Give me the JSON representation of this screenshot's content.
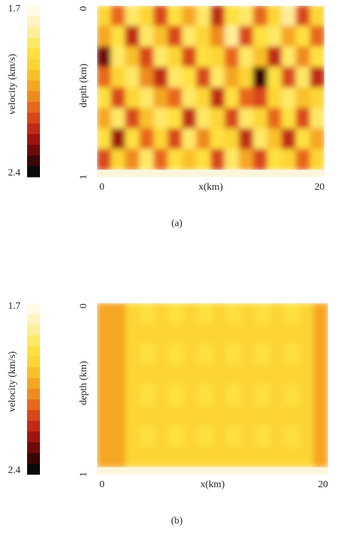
{
  "chart_data": [
    {
      "type": "heatmap",
      "caption": "(a)",
      "xlabel": "x(km)",
      "ylabel": "depth (km)",
      "colorbar_label": "velocity (km/s)",
      "xlim": [
        -0.45,
        20.45
      ],
      "xticks": [
        0,
        20
      ],
      "ylim": [
        0,
        1
      ],
      "yticks": [
        0,
        1
      ],
      "clim": [
        1.7,
        2.4
      ],
      "cticks": [
        1.7,
        2.4
      ],
      "colors": [
        "#fffbe6",
        "#fff4c0",
        "#ffee99",
        "#ffe866",
        "#ffe040",
        "#fcd535",
        "#f9c02a",
        "#f5a623",
        "#ef8a1f",
        "#e8661c",
        "#d9461a",
        "#c02a16",
        "#9e1410",
        "#6e0a0a",
        "#3a0606",
        "#0a0a0a"
      ],
      "z": [
        [
          1.92,
          2.12,
          1.86,
          1.95,
          2.18,
          1.88,
          2.05,
          1.84,
          2.2,
          1.9,
          1.85,
          2.1,
          1.93,
          1.82,
          2.15,
          1.96
        ],
        [
          2.05,
          1.9,
          2.22,
          1.84,
          1.98,
          2.14,
          1.87,
          1.93,
          2.08,
          1.8,
          2.16,
          1.89,
          1.86,
          2.02,
          1.91,
          2.12
        ],
        [
          2.28,
          1.86,
          2.0,
          2.15,
          1.85,
          1.92,
          2.18,
          1.88,
          1.94,
          2.12,
          1.87,
          1.97,
          2.2,
          1.85,
          2.08,
          1.9
        ],
        [
          2.1,
          1.95,
          1.84,
          2.06,
          2.2,
          1.86,
          1.9,
          2.16,
          1.85,
          2.02,
          1.92,
          2.34,
          1.88,
          2.14,
          1.86,
          2.22
        ],
        [
          1.88,
          2.17,
          1.93,
          1.86,
          2.04,
          2.12,
          1.84,
          1.96,
          2.22,
          1.88,
          2.1,
          2.18,
          1.95,
          1.87,
          2.0,
          1.92
        ],
        [
          2.02,
          1.86,
          2.14,
          1.98,
          1.87,
          1.9,
          2.2,
          1.86,
          1.93,
          2.15,
          1.85,
          1.94,
          2.12,
          1.9,
          2.18,
          1.86
        ],
        [
          1.9,
          2.24,
          1.88,
          2.1,
          1.95,
          2.16,
          1.85,
          2.08,
          1.88,
          1.96,
          2.2,
          1.86,
          1.98,
          2.22,
          1.89,
          2.05
        ],
        [
          2.14,
          1.92,
          2.06,
          1.86,
          2.12,
          1.88,
          2.0,
          1.91,
          2.16,
          1.87,
          2.04,
          2.14,
          1.9,
          1.95,
          2.1,
          1.92
        ]
      ]
    },
    {
      "type": "heatmap",
      "caption": "(b)",
      "xlabel": "x(km)",
      "ylabel": "depth (km)",
      "colorbar_label": "velocity (km/s)",
      "xlim": [
        -0.45,
        20.45
      ],
      "xticks": [
        0,
        20
      ],
      "ylim": [
        0,
        1
      ],
      "yticks": [
        0,
        1
      ],
      "clim": [
        1.7,
        2.4
      ],
      "cticks": [
        1.7,
        2.4
      ],
      "colors": [
        "#fffbe6",
        "#fff4c0",
        "#ffee99",
        "#ffe866",
        "#ffe040",
        "#fcd535",
        "#f9c02a",
        "#f5a623",
        "#ef8a1f",
        "#e8661c",
        "#d9461a",
        "#c02a16",
        "#9e1410",
        "#6e0a0a",
        "#3a0606",
        "#0a0a0a"
      ],
      "z": [
        [
          2.05,
          2.04,
          1.96,
          1.91,
          1.96,
          1.91,
          1.96,
          1.91,
          1.96,
          1.91,
          1.96,
          1.91,
          1.96,
          1.91,
          1.96,
          2.05
        ],
        [
          2.05,
          2.04,
          1.96,
          1.96,
          1.96,
          1.96,
          1.96,
          1.96,
          1.96,
          1.96,
          1.96,
          1.96,
          1.96,
          1.96,
          1.96,
          2.05
        ],
        [
          2.05,
          2.04,
          1.96,
          1.91,
          1.96,
          1.91,
          1.96,
          1.91,
          1.96,
          1.91,
          1.96,
          1.91,
          1.96,
          1.91,
          1.96,
          2.05
        ],
        [
          2.05,
          2.04,
          1.96,
          1.96,
          1.96,
          1.96,
          1.96,
          1.96,
          1.96,
          1.96,
          1.96,
          1.96,
          1.96,
          1.96,
          1.96,
          2.05
        ],
        [
          2.05,
          2.04,
          1.96,
          1.91,
          1.96,
          1.91,
          1.96,
          1.91,
          1.96,
          1.91,
          1.96,
          1.91,
          1.96,
          1.91,
          1.96,
          2.05
        ],
        [
          2.05,
          2.04,
          1.96,
          1.96,
          1.96,
          1.96,
          1.96,
          1.96,
          1.96,
          1.96,
          1.96,
          1.96,
          1.96,
          1.96,
          1.96,
          2.05
        ],
        [
          2.05,
          2.04,
          1.96,
          1.91,
          1.96,
          1.91,
          1.96,
          1.91,
          1.96,
          1.91,
          1.96,
          1.91,
          1.96,
          1.91,
          1.96,
          2.05
        ],
        [
          2.05,
          2.04,
          1.96,
          1.96,
          1.96,
          1.96,
          1.96,
          1.96,
          1.96,
          1.96,
          1.96,
          1.96,
          1.96,
          1.96,
          1.96,
          2.05
        ]
      ]
    }
  ]
}
